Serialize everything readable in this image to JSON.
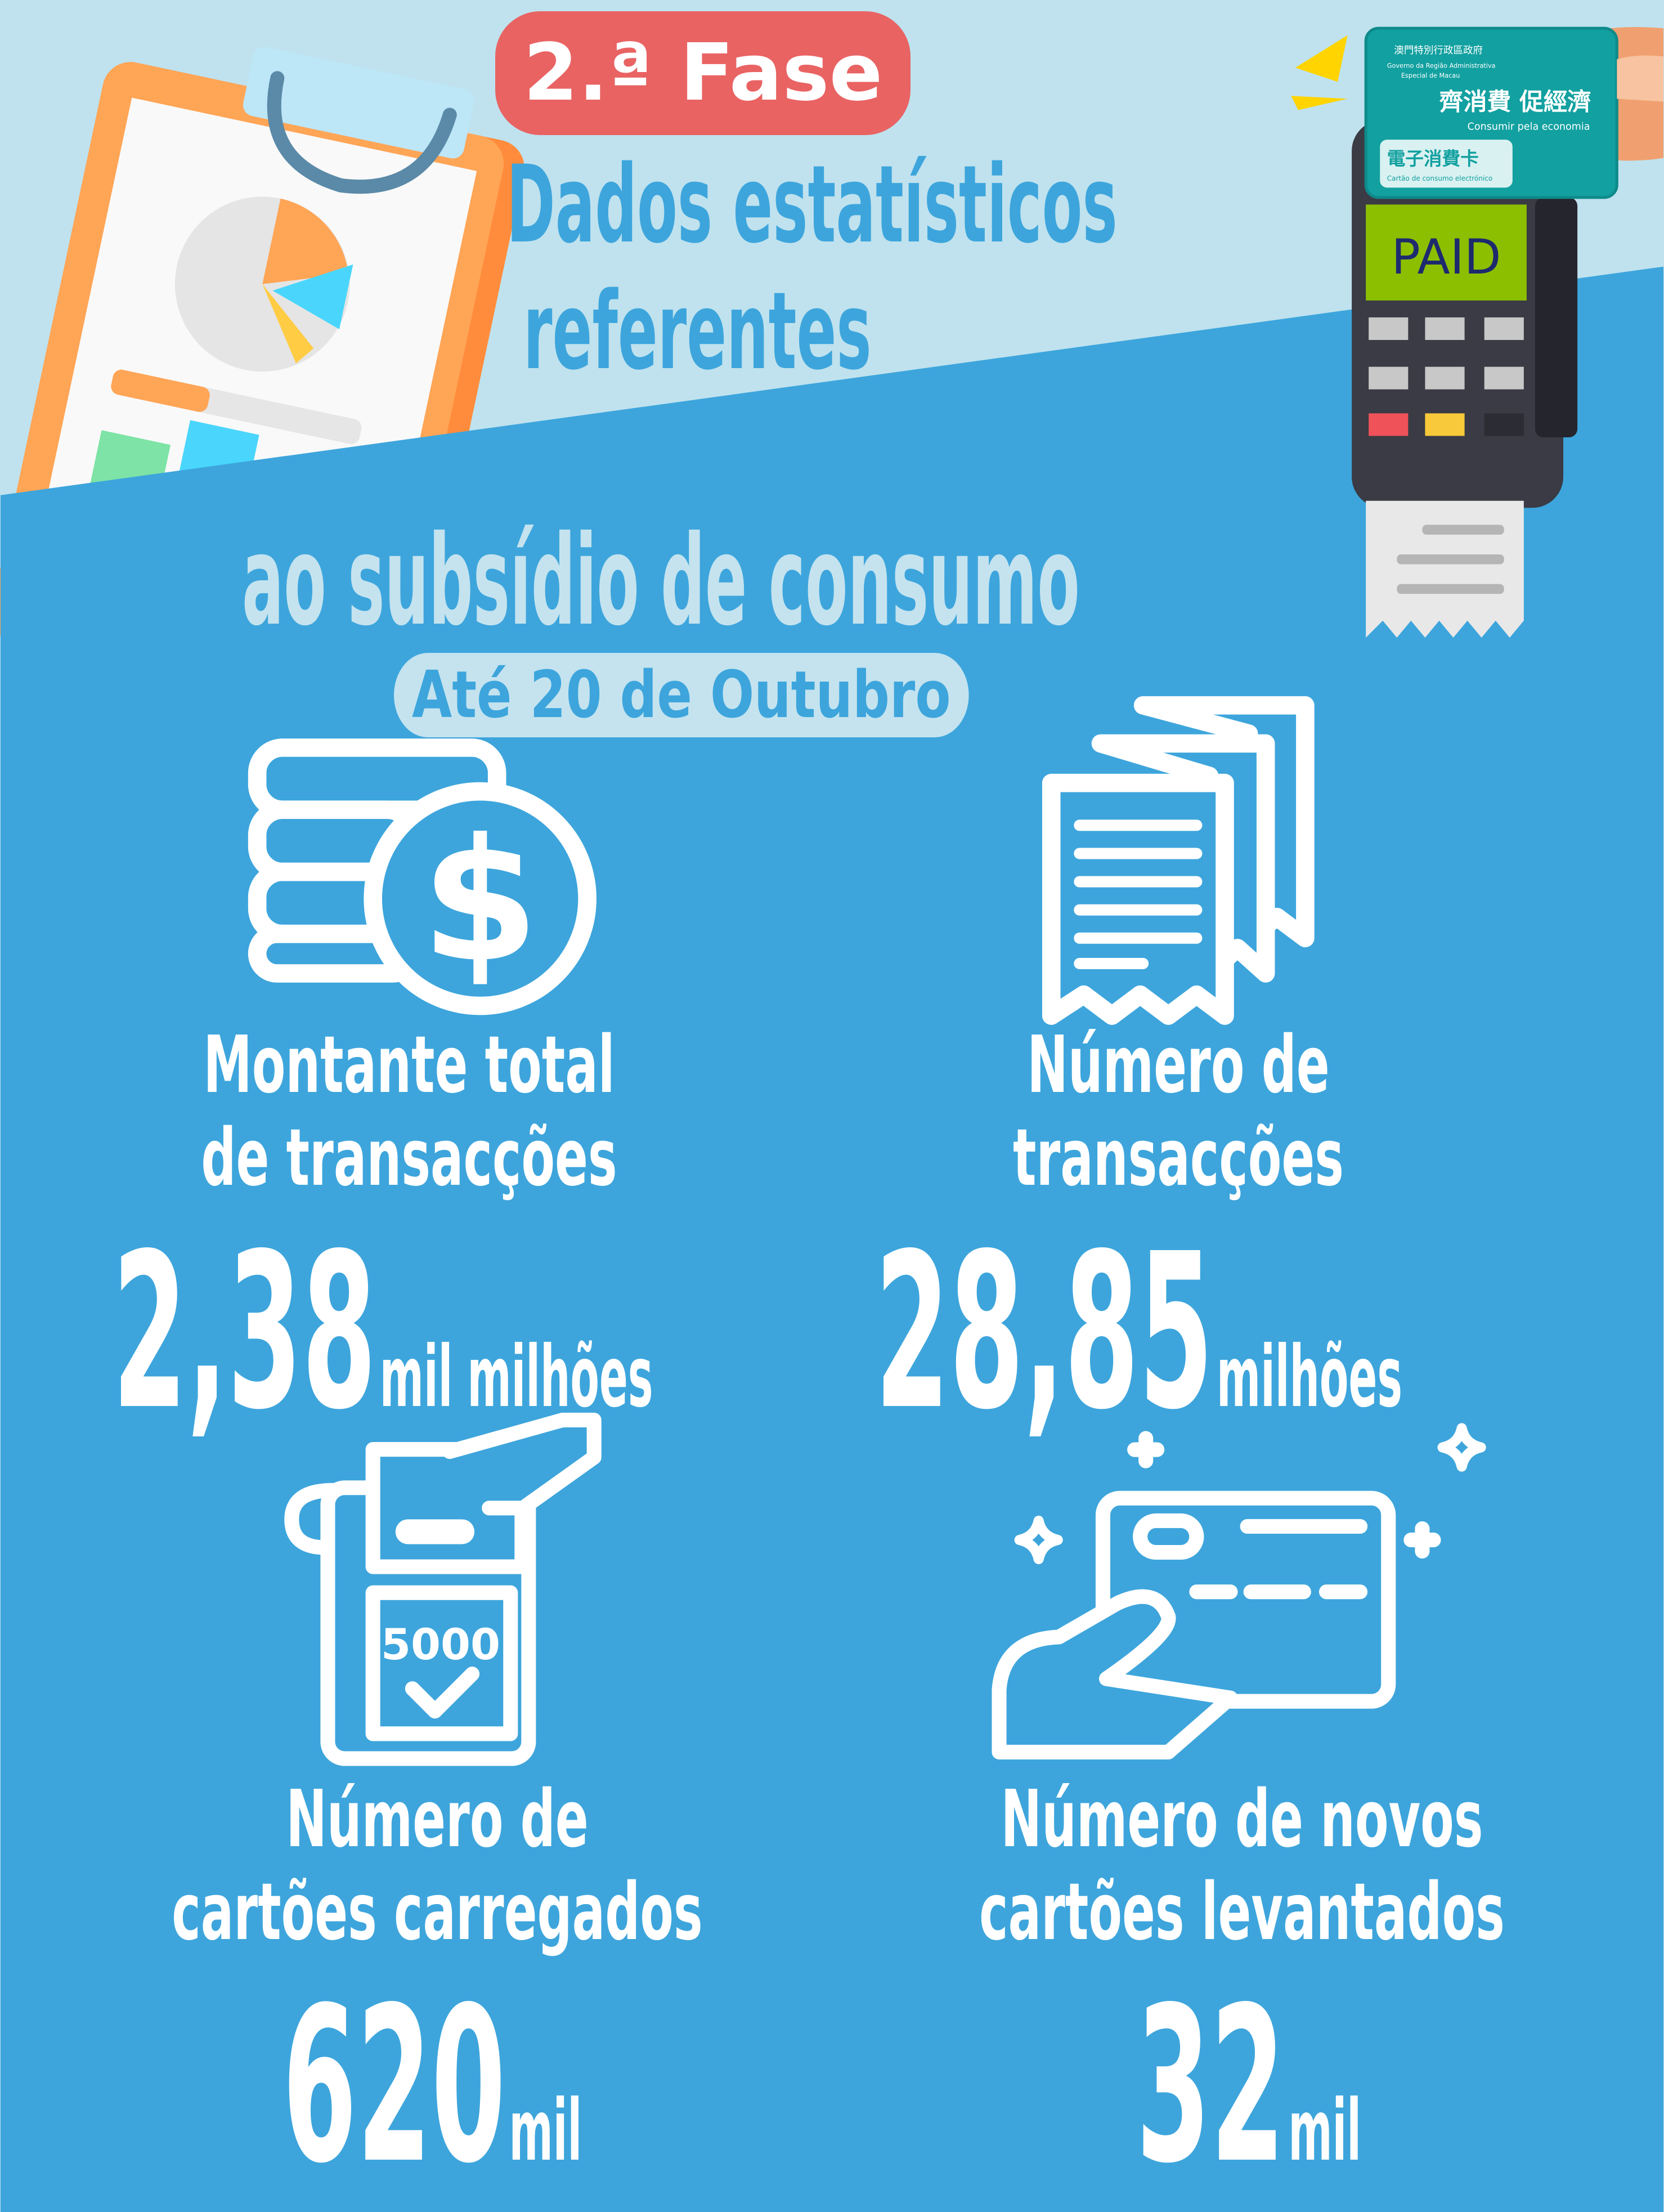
{
  "colors": {
    "background_top": "#bfe2ee",
    "background_main": "#3da5dc",
    "badge": "#e96363",
    "card": "#12a0a0",
    "screen": "#8cbf00"
  },
  "header": {
    "badge": "2.ª Fase",
    "title_lines": [
      "Dados estatísticos",
      "referentes",
      "ao subsídio de consumo"
    ],
    "date": "Até 20 de Outubro"
  },
  "illustration": {
    "terminal_screen": "PAID",
    "card": {
      "gov_zh": "澳門特別行政區政府",
      "gov_pt_1": "Governo da Região Administrativa",
      "gov_pt_2": "Especial de Macau",
      "slogan_zh": "齊消費 促經濟",
      "slogan_pt": "Consumir pela economia",
      "card_zh": "電子消費卡",
      "card_pt": "Cartão de consumo electrónico"
    },
    "register_display": "5000"
  },
  "stats": [
    {
      "icon": "coins-dollar-icon",
      "label_lines": [
        "Montante total",
        "de transacções"
      ],
      "value": "2,38",
      "unit": "mil milhões"
    },
    {
      "icon": "receipts-icon",
      "label_lines": [
        "Número de",
        "transacções"
      ],
      "value": "28,85",
      "unit": "milhões"
    },
    {
      "icon": "card-reader-icon",
      "label_lines": [
        "Número de",
        "cartões carregados"
      ],
      "value": "620",
      "unit": "mil"
    },
    {
      "icon": "hand-card-icon",
      "label_lines": [
        "Número de novos",
        "cartões levantados"
      ],
      "value": "32",
      "unit": "mil"
    }
  ]
}
